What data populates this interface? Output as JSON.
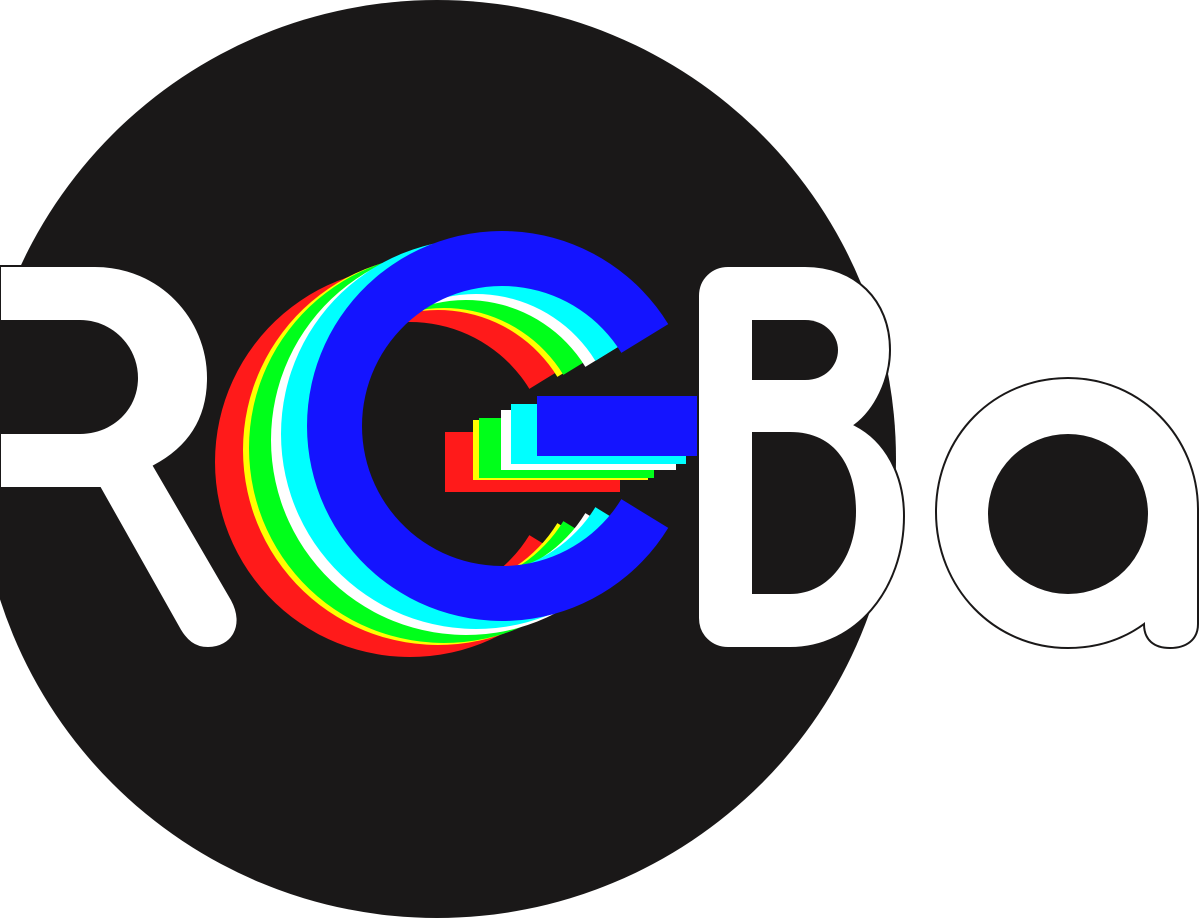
{
  "logo": {
    "wordmark": "RGBa",
    "letters": [
      "R",
      "G",
      "B",
      "a"
    ]
  },
  "colors": {
    "background": "#ffffff",
    "disc": "#1a1818",
    "letter_fill": "#ffffff",
    "outline": "#1a1818",
    "g_layers": {
      "red": "#ff1a1a",
      "yellow": "#ffff00",
      "green": "#00ff1a",
      "white": "#ffffff",
      "cyan": "#00ffff",
      "blue": "#1414ff"
    }
  }
}
